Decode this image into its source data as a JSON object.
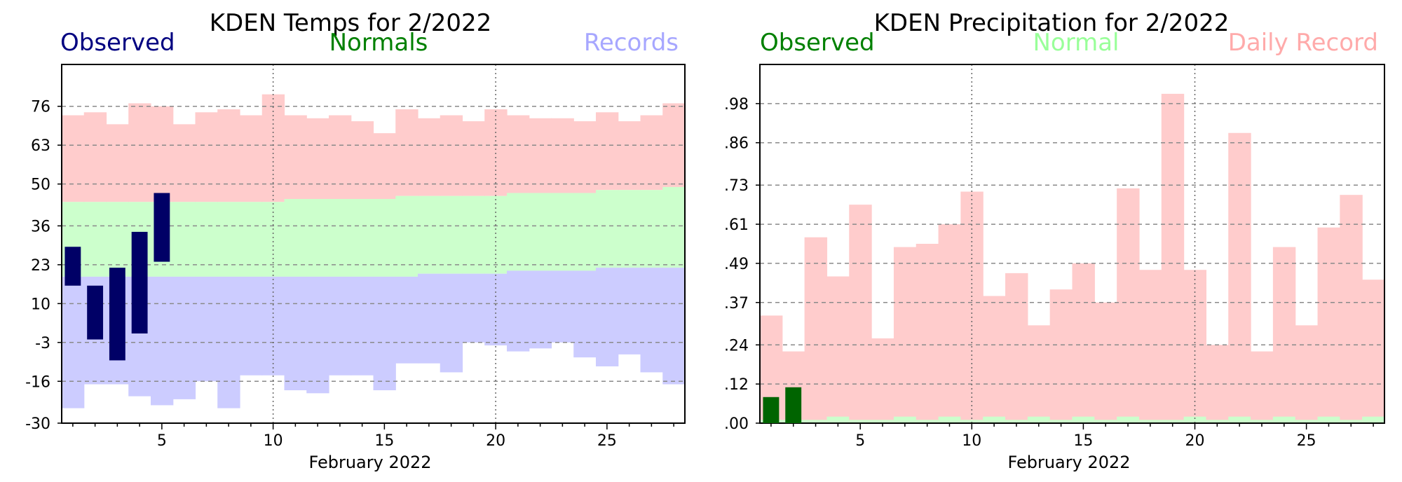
{
  "chart_data": [
    {
      "type": "bar",
      "title": "KDEN Temps for 2/2022",
      "xlabel": "February 2022",
      "ylabel": "",
      "ylim": [
        -30,
        90
      ],
      "xlim": [
        0.5,
        28.5
      ],
      "yticks": [
        76,
        63,
        50,
        36,
        23,
        10,
        -3,
        -16,
        -30
      ],
      "ytick_labels": [
        "76",
        "63",
        "50",
        "36",
        "23",
        "10",
        "-3",
        "-16",
        "-30"
      ],
      "xticks": [
        5,
        10,
        15,
        20,
        25
      ],
      "xtick_labels": [
        "5",
        "10",
        "15",
        "20",
        "25"
      ],
      "grid": "dashed horizontal at y ticks; dotted vertical at days 10 and 20",
      "legend": {
        "placement": "top",
        "entries": [
          {
            "label": "Observed",
            "color": "#000080"
          },
          {
            "label": "Normals",
            "color": "#008000"
          },
          {
            "label": "Records",
            "color": "#a7a7ff"
          }
        ]
      },
      "days": [
        1,
        2,
        3,
        4,
        5,
        6,
        7,
        8,
        9,
        10,
        11,
        12,
        13,
        14,
        15,
        16,
        17,
        18,
        19,
        20,
        21,
        22,
        23,
        24,
        25,
        26,
        27,
        28
      ],
      "record_high": [
        73,
        74,
        70,
        77,
        76,
        70,
        74,
        75,
        73,
        80,
        73,
        72,
        73,
        71,
        67,
        75,
        72,
        73,
        71,
        75,
        73,
        72,
        72,
        71,
        74,
        71,
        73,
        77
      ],
      "record_low": [
        -25,
        -17,
        -17,
        -21,
        -24,
        -22,
        -16,
        -25,
        -14,
        -14,
        -19,
        -20,
        -14,
        -14,
        -19,
        -10,
        -10,
        -13,
        -3,
        -4,
        -6,
        -5,
        -3,
        -8,
        -11,
        -7,
        -13,
        -17
      ],
      "normal_high": [
        44,
        44,
        44,
        44,
        44,
        44,
        44,
        44,
        44,
        44,
        45,
        45,
        45,
        45,
        45,
        46,
        46,
        46,
        46,
        46,
        47,
        47,
        47,
        47,
        48,
        48,
        48,
        49
      ],
      "normal_low": [
        19,
        19,
        19,
        19,
        19,
        19,
        19,
        19,
        19,
        19,
        19,
        19,
        19,
        19,
        19,
        19,
        20,
        20,
        20,
        20,
        21,
        21,
        21,
        21,
        22,
        22,
        22,
        22
      ],
      "observed": [
        {
          "day": 1,
          "low": 16,
          "high": 29
        },
        {
          "day": 2,
          "low": -2,
          "high": 16
        },
        {
          "day": 3,
          "low": -9,
          "high": 22
        },
        {
          "day": 4,
          "low": 0,
          "high": 34
        },
        {
          "day": 5,
          "low": 24,
          "high": 47
        }
      ],
      "colors": {
        "observed": "#000066",
        "normal": "#ccffcc",
        "record": "#ffcccc",
        "below_normal": "#ccccff"
      }
    },
    {
      "type": "bar",
      "title": "KDEN Precipitation for 2/2022",
      "xlabel": "February 2022",
      "ylabel": "",
      "ylim": [
        0,
        1.1
      ],
      "xlim": [
        0.5,
        28.5
      ],
      "yticks": [
        0.98,
        0.86,
        0.73,
        0.61,
        0.49,
        0.37,
        0.24,
        0.12,
        0.0
      ],
      "ytick_labels": [
        ".98",
        ".86",
        ".73",
        ".61",
        ".49",
        ".37",
        ".24",
        ".12",
        ".00"
      ],
      "xticks": [
        5,
        10,
        15,
        20,
        25
      ],
      "xtick_labels": [
        "5",
        "10",
        "15",
        "20",
        "25"
      ],
      "grid": "dashed horizontal at y ticks; dotted vertical at days 10 and 20",
      "legend": {
        "placement": "top",
        "entries": [
          {
            "label": "Observed",
            "color": "#008000"
          },
          {
            "label": "Normal",
            "color": "#99ff99"
          },
          {
            "label": "Daily Record",
            "color": "#ffaaaa"
          }
        ]
      },
      "days": [
        1,
        2,
        3,
        4,
        5,
        6,
        7,
        8,
        9,
        10,
        11,
        12,
        13,
        14,
        15,
        16,
        17,
        18,
        19,
        20,
        21,
        22,
        23,
        24,
        25,
        26,
        27,
        28
      ],
      "daily_record": [
        0.33,
        0.22,
        0.57,
        0.45,
        0.67,
        0.26,
        0.54,
        0.55,
        0.61,
        0.71,
        0.39,
        0.46,
        0.3,
        0.41,
        0.49,
        0.37,
        0.72,
        0.47,
        1.01,
        0.47,
        0.24,
        0.89,
        0.22,
        0.54,
        0.3,
        0.6,
        0.7,
        0.44
      ],
      "normal": [
        0.01,
        0.01,
        0.01,
        0.02,
        0.01,
        0.01,
        0.02,
        0.01,
        0.02,
        0.01,
        0.02,
        0.01,
        0.02,
        0.01,
        0.02,
        0.01,
        0.02,
        0.01,
        0.01,
        0.02,
        0.01,
        0.02,
        0.01,
        0.02,
        0.01,
        0.02,
        0.01,
        0.02
      ],
      "observed": [
        {
          "day": 1,
          "value": 0.08
        },
        {
          "day": 2,
          "value": 0.11
        }
      ],
      "colors": {
        "observed": "#006400",
        "normal": "#ccffcc",
        "record": "#ffcccc"
      }
    }
  ]
}
